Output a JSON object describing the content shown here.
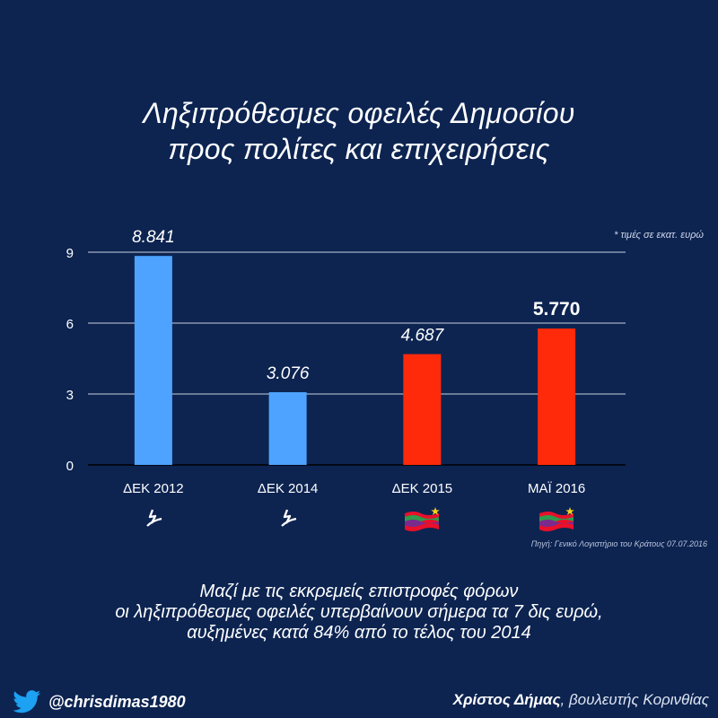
{
  "title": {
    "line1": "Ληξιπρόθεσμες οφειλές Δημοσίου",
    "line2": "προς πολίτες και επιχειρήσεις"
  },
  "units_note": "* τιμές σε εκατ. ευρώ",
  "source": "Πηγή: Γενικό Λογιστήριο του Κράτους 07.07.2016",
  "chart_data": {
    "type": "bar",
    "title": "Ληξιπρόθεσμες οφειλές Δημοσίου προς πολίτες και επιχειρήσεις",
    "categories": [
      "ΔΕΚ 2012",
      "ΔΕΚ 2014",
      "ΔΕΚ 2015",
      "ΜΑΪ 2016"
    ],
    "values": [
      8.841,
      3.076,
      4.687,
      5.77
    ],
    "labels": [
      "8.841",
      "3.076",
      "4.687",
      "5.770"
    ],
    "colors": [
      "#4da3ff",
      "#4da3ff",
      "#ff2a0a",
      "#ff2a0a"
    ],
    "highlight_index": 3,
    "y_ticks": [
      0,
      3,
      6,
      9
    ],
    "ylim": [
      0,
      9
    ],
    "grid": true,
    "xlabel": "",
    "ylabel": ""
  },
  "party_icons": [
    "nd-logo-icon",
    "nd-logo-icon",
    "syriza-logo-icon",
    "syriza-logo-icon"
  ],
  "footer": {
    "line1": "Μαζί με τις εκκρεμείς επιστροφές φόρων",
    "line2": "οι ληξιπρόθεσμες οφειλές υπερβαίνουν σήμερα τα 7 δις ευρώ,",
    "line3": "αυξημένες κατά 84% από το τέλος του 2014"
  },
  "twitter_handle": "@chrisdimas1980",
  "signature": {
    "name": "Χρίστος Δήμας",
    "role": ", βουλευτής Κορινθίας"
  }
}
